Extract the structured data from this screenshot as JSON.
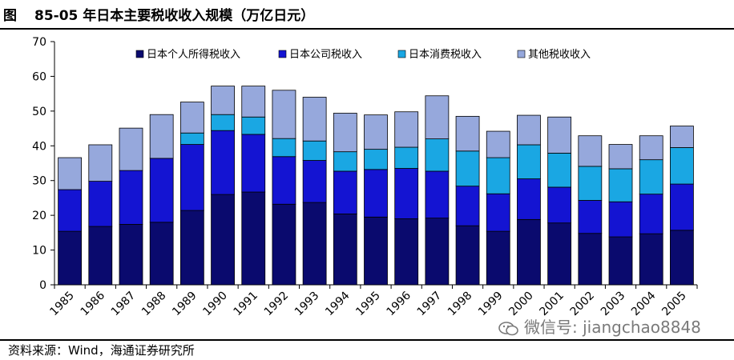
{
  "figure": {
    "label": "图",
    "number": "85-05",
    "title": "年日本主要税收收入规模（万亿日元）"
  },
  "source": "资料来源：Wind，海通证券研究所",
  "watermark": "微信号: jiangchao8848",
  "colors": {
    "personal": "#0a0a6e",
    "corporate": "#1414d2",
    "consumption": "#1aa7e3",
    "other": "#96a8dc"
  },
  "chart_data": {
    "type": "bar",
    "stacked": true,
    "categories": [
      "1985",
      "1986",
      "1987",
      "1988",
      "1989",
      "1990",
      "1991",
      "1992",
      "1993",
      "1994",
      "1995",
      "1996",
      "1997",
      "1998",
      "1999",
      "2000",
      "2001",
      "2002",
      "2003",
      "2004",
      "2005"
    ],
    "series": [
      {
        "name": "日本个人所得税收入",
        "color": "#0a0a6e",
        "values": [
          15.4,
          16.8,
          17.4,
          18.0,
          21.4,
          26.0,
          26.7,
          23.2,
          23.7,
          20.4,
          19.5,
          19.0,
          19.2,
          17.0,
          15.4,
          18.8,
          17.8,
          14.8,
          13.8,
          14.7,
          15.7
        ]
      },
      {
        "name": "日本公司税收入",
        "color": "#1414d2",
        "values": [
          12.0,
          13.0,
          15.5,
          18.4,
          19.0,
          18.4,
          16.6,
          13.7,
          12.1,
          12.3,
          13.7,
          14.5,
          13.5,
          11.4,
          10.8,
          11.7,
          10.3,
          9.5,
          10.1,
          11.4,
          13.3
        ]
      },
      {
        "name": "日本消费税收入",
        "color": "#1aa7e3",
        "values": [
          0,
          0,
          0,
          0,
          3.3,
          4.6,
          5.0,
          5.2,
          5.6,
          5.6,
          5.8,
          6.1,
          9.3,
          10.1,
          10.4,
          9.8,
          9.8,
          9.8,
          9.5,
          9.9,
          10.5
        ]
      },
      {
        "name": "其他税收收入",
        "color": "#96a8dc",
        "values": [
          9.2,
          10.5,
          12.2,
          12.6,
          8.9,
          8.2,
          8.9,
          13.9,
          12.6,
          11.1,
          9.9,
          10.2,
          12.4,
          10.0,
          7.6,
          8.5,
          10.4,
          8.8,
          7.0,
          6.9,
          6.2
        ]
      }
    ],
    "ylim": [
      0,
      70
    ],
    "yticks": [
      "0",
      "10",
      "20",
      "30",
      "40",
      "50",
      "60",
      "70"
    ],
    "xlabel": "",
    "ylabel": "",
    "grid": false,
    "legend": "top"
  }
}
